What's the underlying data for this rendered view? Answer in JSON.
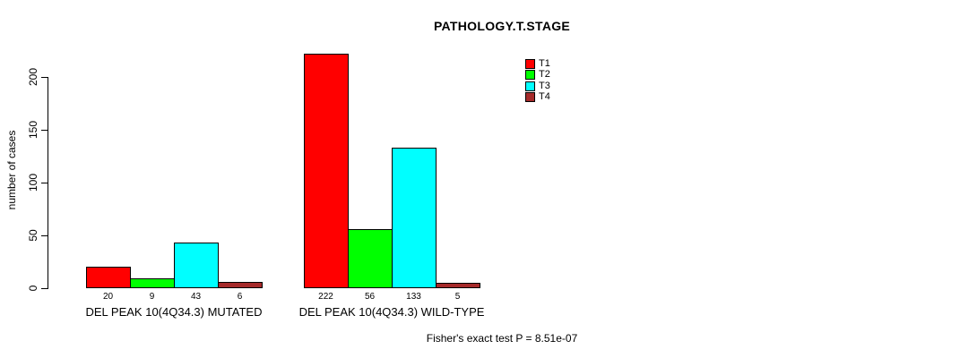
{
  "chart_data": {
    "type": "bar",
    "title": "PATHOLOGY.T.STAGE",
    "ylabel": "number of cases",
    "xlabel": "",
    "categories": [
      "DEL PEAK 10(4Q34.3) MUTATED",
      "DEL PEAK 10(4Q34.3) WILD-TYPE"
    ],
    "series": [
      {
        "name": "T1",
        "color": "#ff0000",
        "values": [
          20,
          222
        ]
      },
      {
        "name": "T2",
        "color": "#00ff00",
        "values": [
          9,
          56
        ]
      },
      {
        "name": "T3",
        "color": "#00ffff",
        "values": [
          43,
          133
        ]
      },
      {
        "name": "T4",
        "color": "#a52a2a",
        "values": [
          6,
          5
        ]
      }
    ],
    "yticks": [
      0,
      50,
      100,
      150,
      200
    ],
    "ylim": [
      0,
      230
    ],
    "grid": false,
    "legend_position": "top-right",
    "show_values_below_bars": true,
    "annotation": "Fisher's exact test P = 8.51e-07",
    "bar_border_color": "#000000"
  }
}
